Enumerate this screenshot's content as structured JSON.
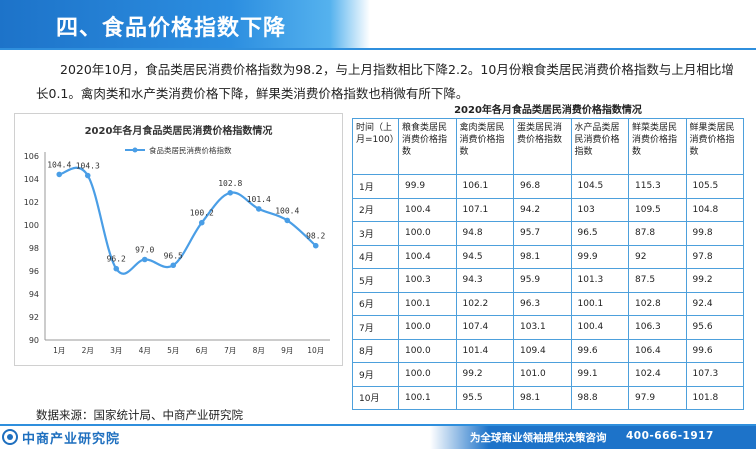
{
  "header": {
    "title": "四、食品价格指数下降"
  },
  "intro": {
    "text": "2020年10月，食品类居民消费价格指数为98.2，与上月指数相比下降2.2。10月份粮食类居民消费价格指数与上月相比增长0.1。禽肉类和水产类消费价格下降，鲜果类消费价格指数也稍微有所下降。"
  },
  "chart_data": {
    "type": "line",
    "title": "2020年各月食品类居民消费价格指数情况",
    "categories": [
      "1月",
      "2月",
      "3月",
      "4月",
      "5月",
      "6月",
      "7月",
      "8月",
      "9月",
      "10月"
    ],
    "series": [
      {
        "name": "食品类居民消费价格指数",
        "values": [
          104.4,
          104.3,
          96.2,
          97.0,
          96.5,
          100.2,
          102.8,
          101.4,
          100.4,
          98.2
        ]
      }
    ],
    "data_labels": [
      "104.4",
      "104.3",
      "96.2",
      "97.0",
      "96.5",
      "100.2",
      "102.8",
      "101.4",
      "100.4",
      "98.2"
    ],
    "yticks": [
      "106",
      "104",
      "102",
      "100",
      "98",
      "96",
      "94",
      "92",
      "90"
    ],
    "ylim": [
      90,
      106
    ],
    "legend_position": "top",
    "line_color": "#4a9ee6"
  },
  "table": {
    "title": "2020年各月食品类居民消费价格指数情况",
    "headers": [
      "时间（上月=100）",
      "粮食类居民消费价格指数",
      "禽肉类居民消费价格指数",
      "蛋类居民消费价格指数",
      "水产品类居民消费价格指数",
      "鲜菜类居民消费价格指数",
      "鲜果类居民消费价格指数"
    ],
    "rows": [
      [
        "1月",
        "99.9",
        "106.1",
        "96.8",
        "104.5",
        "115.3",
        "105.5"
      ],
      [
        "2月",
        "100.4",
        "107.1",
        "94.2",
        "103",
        "109.5",
        "104.8"
      ],
      [
        "3月",
        "100.0",
        "94.8",
        "95.7",
        "96.5",
        "87.8",
        "99.8"
      ],
      [
        "4月",
        "100.4",
        "94.5",
        "98.1",
        "99.9",
        "92",
        "97.8"
      ],
      [
        "5月",
        "100.3",
        "94.3",
        "95.9",
        "101.3",
        "87.5",
        "99.2"
      ],
      [
        "6月",
        "100.1",
        "102.2",
        "96.3",
        "100.1",
        "102.8",
        "92.4"
      ],
      [
        "7月",
        "100.0",
        "107.4",
        "103.1",
        "100.4",
        "106.3",
        "95.6"
      ],
      [
        "8月",
        "100.0",
        "101.4",
        "109.4",
        "99.6",
        "106.4",
        "99.6"
      ],
      [
        "9月",
        "100.0",
        "99.2",
        "101.0",
        "99.1",
        "102.4",
        "107.3"
      ],
      [
        "10月",
        "100.1",
        "95.5",
        "98.1",
        "98.8",
        "97.9",
        "101.8"
      ]
    ]
  },
  "source": {
    "text": "数据来源：国家统计局、中商产业研究院"
  },
  "footer": {
    "logo_text": "中商产业研究院",
    "slogan": "为全球商业领袖提供决策咨询",
    "phone": "400-666-1917",
    "logo_icon": "logo-mark-icon"
  },
  "colors": {
    "accent": "#1d73c9",
    "table_border": "#4da0dc"
  }
}
